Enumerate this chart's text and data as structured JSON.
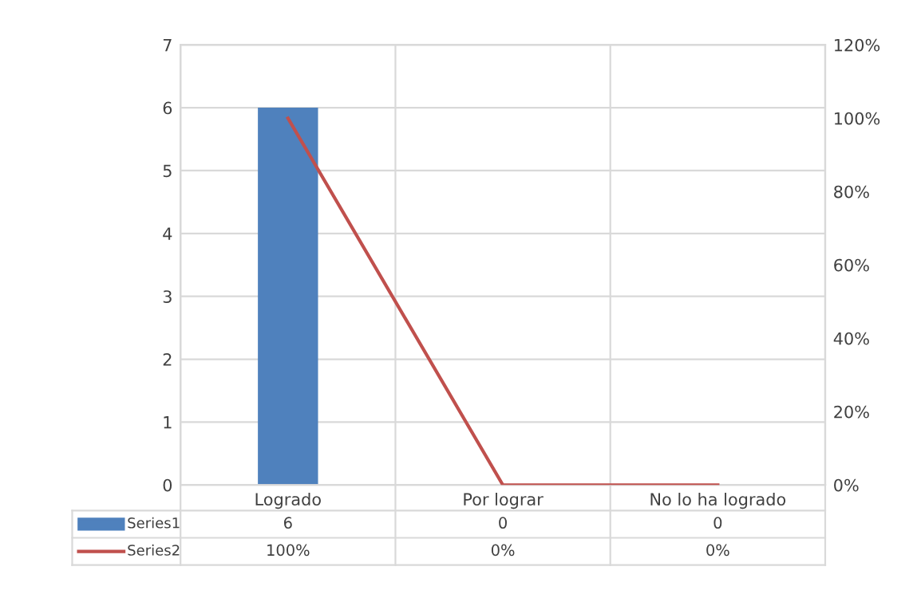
{
  "chart_data": {
    "type": "bar",
    "categories": [
      "Logrado",
      "Por lograr",
      "No lo ha logrado"
    ],
    "series": [
      {
        "name": "Series1",
        "color": "#4f81bd",
        "values": [
          6,
          0,
          0
        ],
        "value_labels": [
          "6",
          "0",
          "0"
        ]
      },
      {
        "name": "Series2",
        "type": "line",
        "axis": "y2",
        "color": "#c0504d",
        "values": [
          100,
          0,
          0
        ],
        "value_labels": [
          "100%",
          "0%",
          "0%"
        ]
      }
    ],
    "ylim": [
      0,
      7
    ],
    "yticks": [
      0,
      1,
      2,
      3,
      4,
      5,
      6,
      7
    ],
    "y2lim": [
      0,
      120
    ],
    "y2ticks": [
      {
        "value": 0,
        "label": "0%"
      },
      {
        "value": 20,
        "label": "20%"
      },
      {
        "value": 40,
        "label": "40%"
      },
      {
        "value": 60,
        "label": "60%"
      },
      {
        "value": 80,
        "label": "80%"
      },
      {
        "value": 100,
        "label": "100%"
      },
      {
        "value": 120,
        "label": "120%"
      }
    ],
    "grid": true,
    "legend": "bottom",
    "marker": "none",
    "line_style": "solid"
  }
}
